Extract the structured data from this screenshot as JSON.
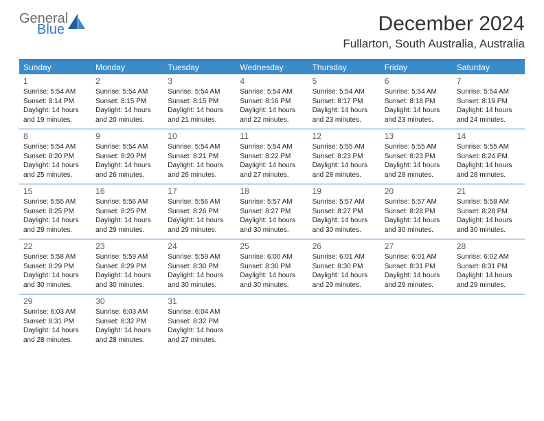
{
  "logo": {
    "text1": "General",
    "text2": "Blue"
  },
  "title": "December 2024",
  "location": "Fullarton, South Australia, Australia",
  "colors": {
    "header_bar": "#3b8bc9",
    "border": "#2f7bbf",
    "dow_text": "#ffffff",
    "daynum": "#5a5a5a",
    "body_text": "#222222",
    "logo_gray": "#6b6b6b",
    "logo_blue": "#2f7bbf",
    "title_color": "#333333",
    "background": "#ffffff"
  },
  "typography": {
    "month_title_fontsize": 30,
    "location_fontsize": 17,
    "dow_fontsize": 12,
    "daynum_fontsize": 12,
    "body_fontsize": 10
  },
  "days_of_week": [
    "Sunday",
    "Monday",
    "Tuesday",
    "Wednesday",
    "Thursday",
    "Friday",
    "Saturday"
  ],
  "days": [
    {
      "n": "1",
      "sunrise": "5:54 AM",
      "sunset": "8:14 PM",
      "dl1": "Daylight: 14 hours",
      "dl2": "and 19 minutes."
    },
    {
      "n": "2",
      "sunrise": "5:54 AM",
      "sunset": "8:15 PM",
      "dl1": "Daylight: 14 hours",
      "dl2": "and 20 minutes."
    },
    {
      "n": "3",
      "sunrise": "5:54 AM",
      "sunset": "8:15 PM",
      "dl1": "Daylight: 14 hours",
      "dl2": "and 21 minutes."
    },
    {
      "n": "4",
      "sunrise": "5:54 AM",
      "sunset": "8:16 PM",
      "dl1": "Daylight: 14 hours",
      "dl2": "and 22 minutes."
    },
    {
      "n": "5",
      "sunrise": "5:54 AM",
      "sunset": "8:17 PM",
      "dl1": "Daylight: 14 hours",
      "dl2": "and 23 minutes."
    },
    {
      "n": "6",
      "sunrise": "5:54 AM",
      "sunset": "8:18 PM",
      "dl1": "Daylight: 14 hours",
      "dl2": "and 23 minutes."
    },
    {
      "n": "7",
      "sunrise": "5:54 AM",
      "sunset": "8:19 PM",
      "dl1": "Daylight: 14 hours",
      "dl2": "and 24 minutes."
    },
    {
      "n": "8",
      "sunrise": "5:54 AM",
      "sunset": "8:20 PM",
      "dl1": "Daylight: 14 hours",
      "dl2": "and 25 minutes."
    },
    {
      "n": "9",
      "sunrise": "5:54 AM",
      "sunset": "8:20 PM",
      "dl1": "Daylight: 14 hours",
      "dl2": "and 26 minutes."
    },
    {
      "n": "10",
      "sunrise": "5:54 AM",
      "sunset": "8:21 PM",
      "dl1": "Daylight: 14 hours",
      "dl2": "and 26 minutes."
    },
    {
      "n": "11",
      "sunrise": "5:54 AM",
      "sunset": "8:22 PM",
      "dl1": "Daylight: 14 hours",
      "dl2": "and 27 minutes."
    },
    {
      "n": "12",
      "sunrise": "5:55 AM",
      "sunset": "8:23 PM",
      "dl1": "Daylight: 14 hours",
      "dl2": "and 28 minutes."
    },
    {
      "n": "13",
      "sunrise": "5:55 AM",
      "sunset": "8:23 PM",
      "dl1": "Daylight: 14 hours",
      "dl2": "and 28 minutes."
    },
    {
      "n": "14",
      "sunrise": "5:55 AM",
      "sunset": "8:24 PM",
      "dl1": "Daylight: 14 hours",
      "dl2": "and 28 minutes."
    },
    {
      "n": "15",
      "sunrise": "5:55 AM",
      "sunset": "8:25 PM",
      "dl1": "Daylight: 14 hours",
      "dl2": "and 29 minutes."
    },
    {
      "n": "16",
      "sunrise": "5:56 AM",
      "sunset": "8:25 PM",
      "dl1": "Daylight: 14 hours",
      "dl2": "and 29 minutes."
    },
    {
      "n": "17",
      "sunrise": "5:56 AM",
      "sunset": "8:26 PM",
      "dl1": "Daylight: 14 hours",
      "dl2": "and 29 minutes."
    },
    {
      "n": "18",
      "sunrise": "5:57 AM",
      "sunset": "8:27 PM",
      "dl1": "Daylight: 14 hours",
      "dl2": "and 30 minutes."
    },
    {
      "n": "19",
      "sunrise": "5:57 AM",
      "sunset": "8:27 PM",
      "dl1": "Daylight: 14 hours",
      "dl2": "and 30 minutes."
    },
    {
      "n": "20",
      "sunrise": "5:57 AM",
      "sunset": "8:28 PM",
      "dl1": "Daylight: 14 hours",
      "dl2": "and 30 minutes."
    },
    {
      "n": "21",
      "sunrise": "5:58 AM",
      "sunset": "8:28 PM",
      "dl1": "Daylight: 14 hours",
      "dl2": "and 30 minutes."
    },
    {
      "n": "22",
      "sunrise": "5:58 AM",
      "sunset": "8:29 PM",
      "dl1": "Daylight: 14 hours",
      "dl2": "and 30 minutes."
    },
    {
      "n": "23",
      "sunrise": "5:59 AM",
      "sunset": "8:29 PM",
      "dl1": "Daylight: 14 hours",
      "dl2": "and 30 minutes."
    },
    {
      "n": "24",
      "sunrise": "5:59 AM",
      "sunset": "8:30 PM",
      "dl1": "Daylight: 14 hours",
      "dl2": "and 30 minutes."
    },
    {
      "n": "25",
      "sunrise": "6:00 AM",
      "sunset": "8:30 PM",
      "dl1": "Daylight: 14 hours",
      "dl2": "and 30 minutes."
    },
    {
      "n": "26",
      "sunrise": "6:01 AM",
      "sunset": "8:30 PM",
      "dl1": "Daylight: 14 hours",
      "dl2": "and 29 minutes."
    },
    {
      "n": "27",
      "sunrise": "6:01 AM",
      "sunset": "8:31 PM",
      "dl1": "Daylight: 14 hours",
      "dl2": "and 29 minutes."
    },
    {
      "n": "28",
      "sunrise": "6:02 AM",
      "sunset": "8:31 PM",
      "dl1": "Daylight: 14 hours",
      "dl2": "and 29 minutes."
    },
    {
      "n": "29",
      "sunrise": "6:03 AM",
      "sunset": "8:31 PM",
      "dl1": "Daylight: 14 hours",
      "dl2": "and 28 minutes."
    },
    {
      "n": "30",
      "sunrise": "6:03 AM",
      "sunset": "8:32 PM",
      "dl1": "Daylight: 14 hours",
      "dl2": "and 28 minutes."
    },
    {
      "n": "31",
      "sunrise": "6:04 AM",
      "sunset": "8:32 PM",
      "dl1": "Daylight: 14 hours",
      "dl2": "and 27 minutes."
    }
  ],
  "labels": {
    "sunrise_prefix": "Sunrise: ",
    "sunset_prefix": "Sunset: "
  },
  "layout": {
    "start_offset": 0,
    "total_cells": 35
  }
}
